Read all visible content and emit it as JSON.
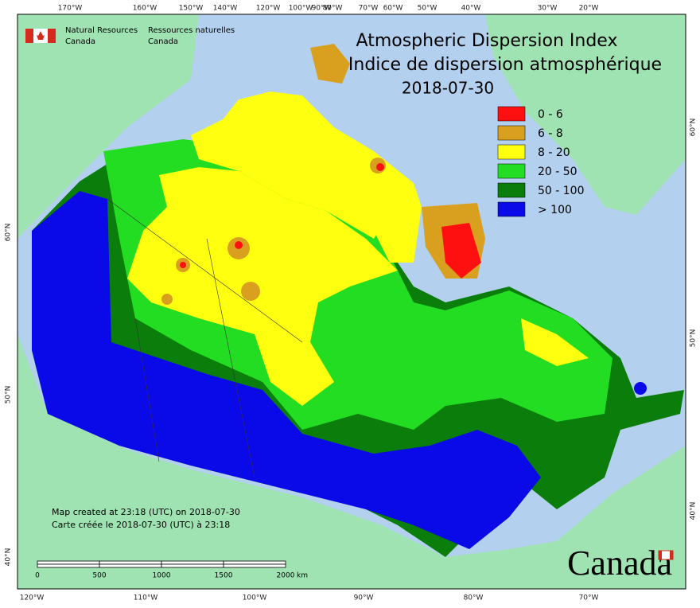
{
  "header": {
    "agency_en": [
      "Natural Resources",
      "Canada"
    ],
    "agency_fr": [
      "Ressources naturelles",
      "Canada"
    ],
    "title": "Atmospheric Dispersion Index",
    "title_fr": "Indice de dispersion atmosphérique",
    "date": "2018-07-30"
  },
  "legend": {
    "items": [
      {
        "label": "0 - 6",
        "color": "#ff1010"
      },
      {
        "label": "6 - 8",
        "color": "#d9a020"
      },
      {
        "label": "8 - 20",
        "color": "#ffff10"
      },
      {
        "label": "20 - 50",
        "color": "#22dd22"
      },
      {
        "label": "50 - 100",
        "color": "#0a7d0a"
      },
      {
        "label": "> 100",
        "color": "#0a0ae8"
      }
    ]
  },
  "graticule": {
    "top": [
      "170°W",
      "160°W",
      "150°W",
      "140°W",
      "120°W",
      "100°W",
      "90°W",
      "80°W",
      "70°W",
      "60°W",
      "50°W",
      "40°W",
      "30°W",
      "20°W"
    ],
    "bottom": [
      "120°W",
      "110°W",
      "100°W",
      "90°W",
      "80°W",
      "70°W"
    ],
    "left": [
      "60°N",
      "50°N",
      "40°N"
    ],
    "right": [
      "60°N",
      "50°N",
      "40°N"
    ]
  },
  "notes": [
    "Map created at 23:18 (UTC) on 2018-07-30",
    "Carte créée le 2018-07-30 (UTC) à 23:18"
  ],
  "scale": {
    "labels": [
      "0",
      "500",
      "1000",
      "1500",
      "2000"
    ],
    "unit": "km"
  },
  "wordmark": "Canada"
}
